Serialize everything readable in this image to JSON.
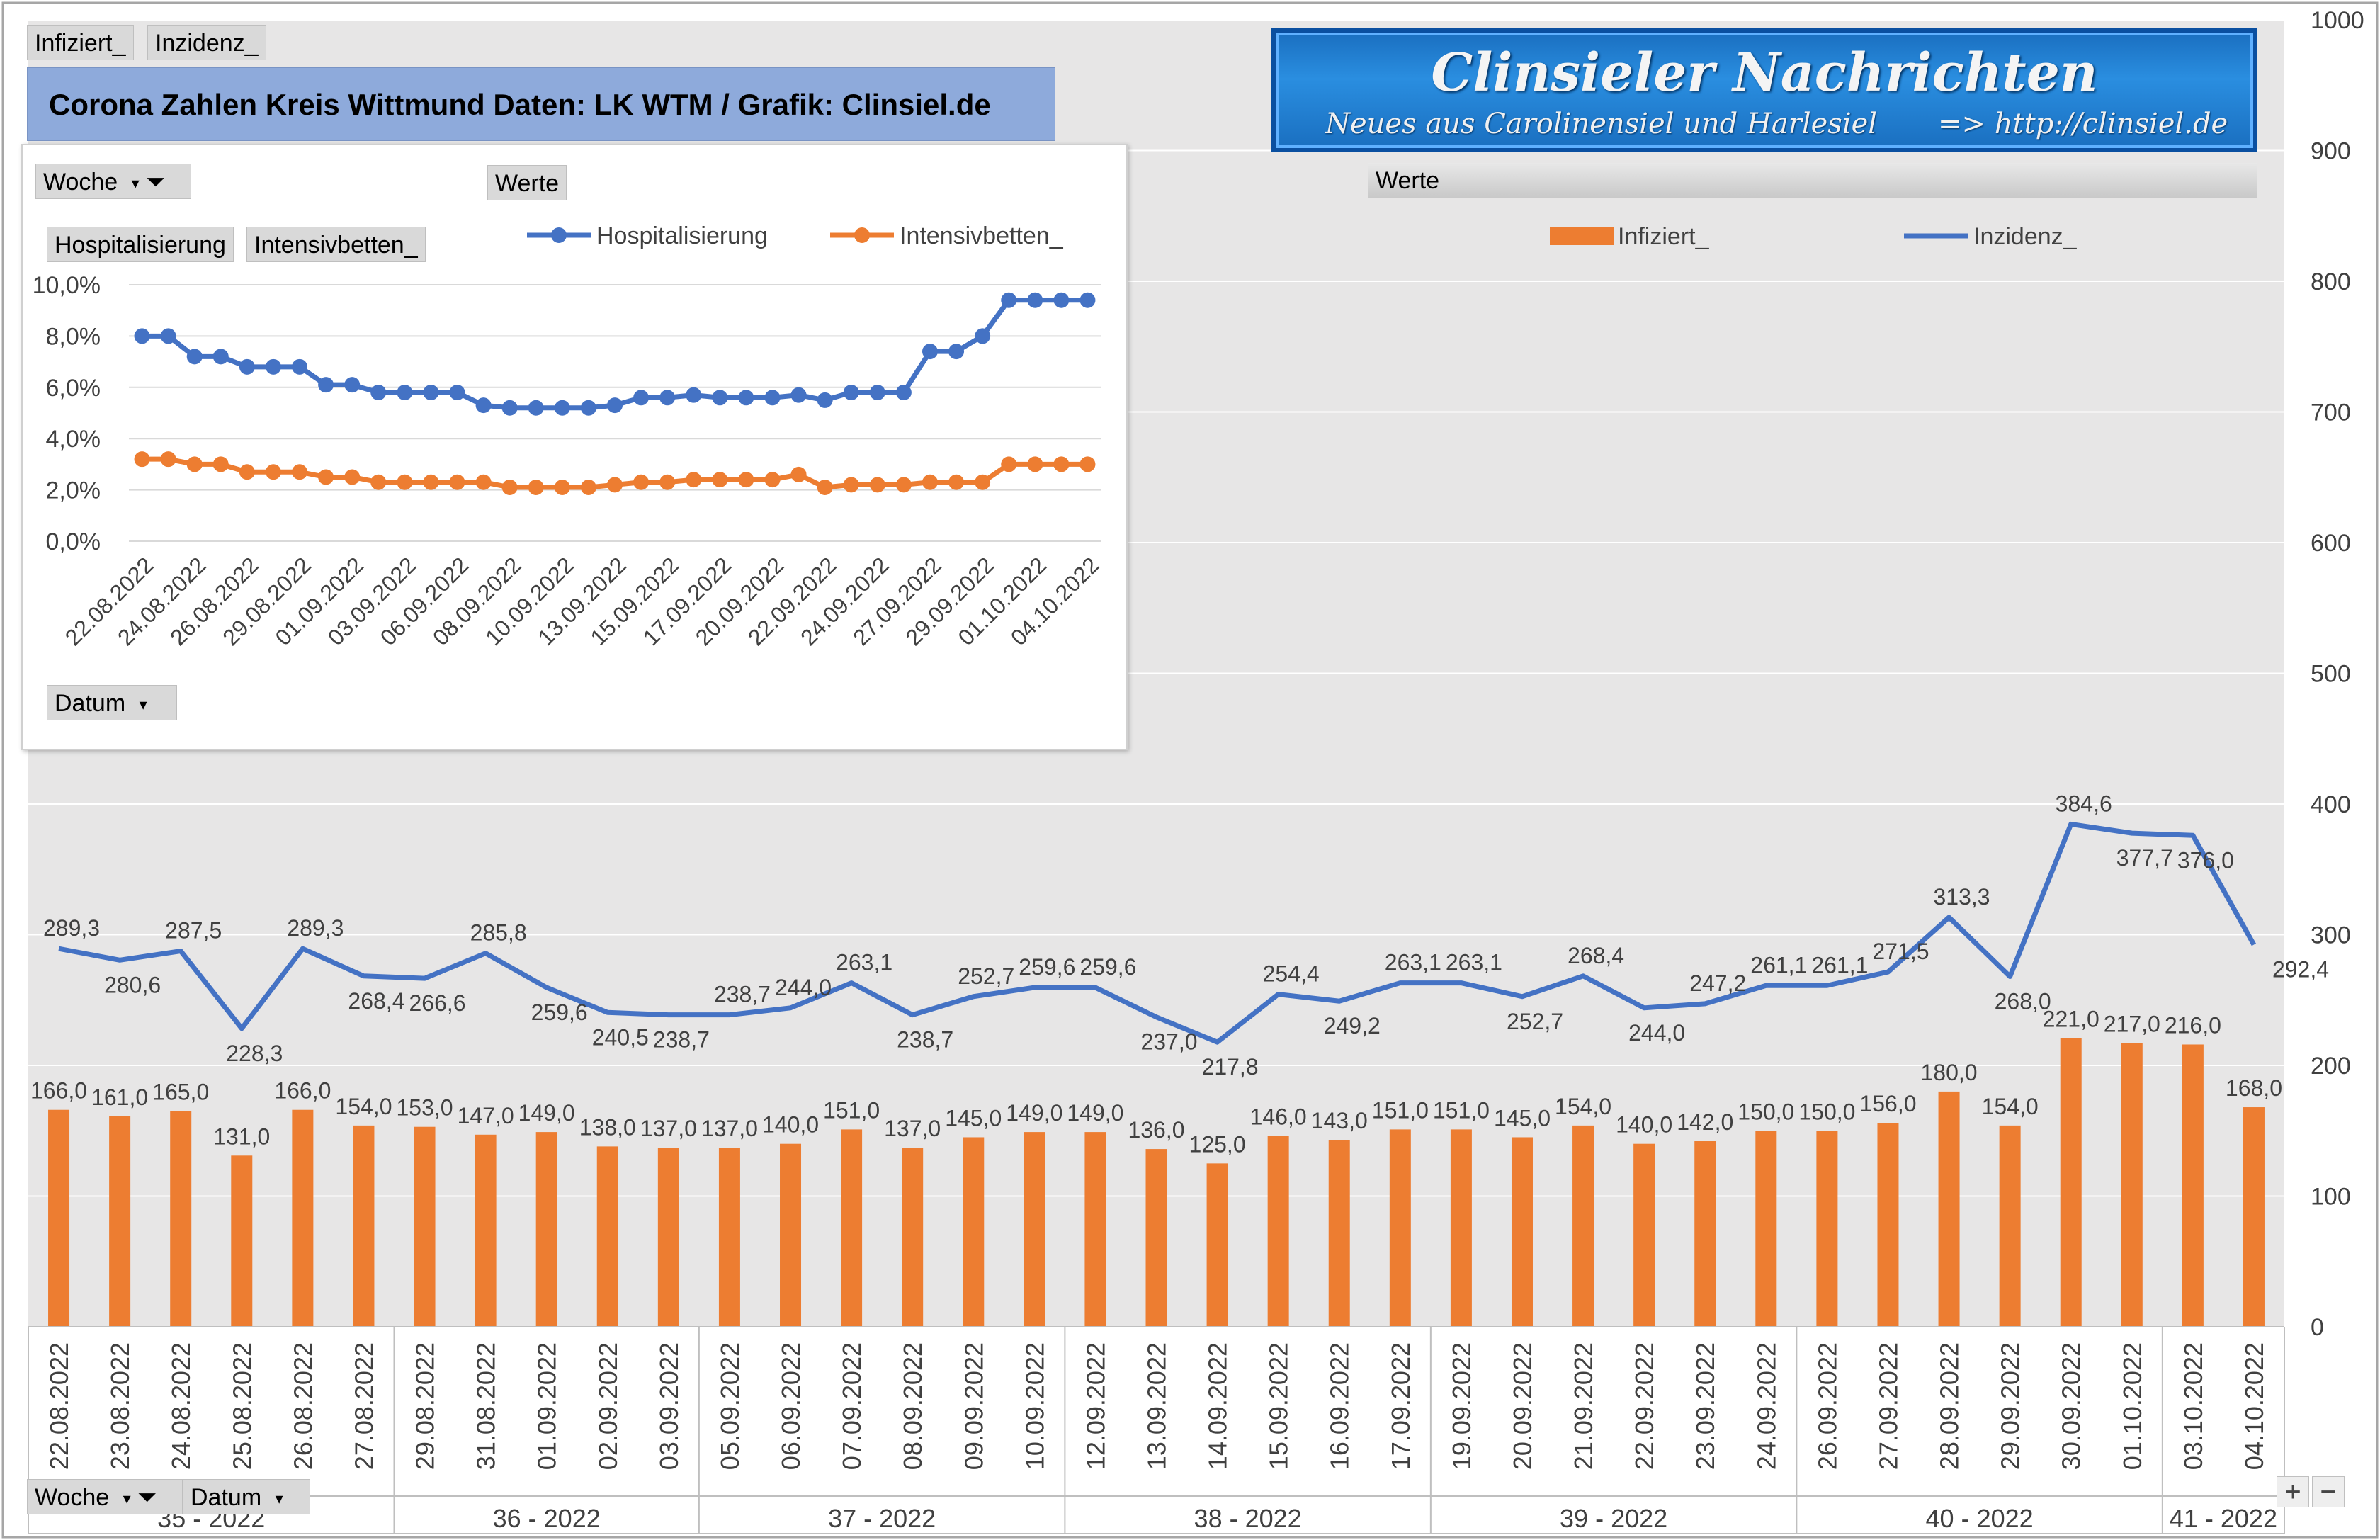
{
  "header": {
    "top_buttons": [
      "Infiziert_",
      "Inzidenz_"
    ],
    "title": "Corona Zahlen Kreis Wittmund  Daten: LK WTM / Grafik: Clinsiel.de"
  },
  "logo": {
    "title": "Clinsieler Nachrichten",
    "subtitle": "Neues aus Carolinensiel und Harlesiel",
    "url": "=> http://clinsiel.de"
  },
  "inset": {
    "filter_week": "Woche",
    "values_label": "Werte",
    "field_hosp": "Hospitalisierung",
    "field_icu": "Intensivbetten_",
    "date_field": "Datum"
  },
  "main": {
    "values_label": "Werte",
    "bottom_week": "Woche",
    "bottom_date": "Datum",
    "plus": "+",
    "minus": "−"
  },
  "colors": {
    "blue": "#4472c4",
    "orange": "#ed7d31",
    "grid": "#ffffff",
    "plot_bg": "#e7e6e6"
  },
  "chart_data": [
    {
      "type": "bar",
      "legend_position": "top",
      "categories": [
        "22.08.2022",
        "23.08.2022",
        "24.08.2022",
        "25.08.2022",
        "26.08.2022",
        "27.08.2022",
        "29.08.2022",
        "31.08.2022",
        "01.09.2022",
        "02.09.2022",
        "03.09.2022",
        "05.09.2022",
        "06.09.2022",
        "07.09.2022",
        "08.09.2022",
        "09.09.2022",
        "10.09.2022",
        "12.09.2022",
        "13.09.2022",
        "14.09.2022",
        "15.09.2022",
        "16.09.2022",
        "17.09.2022",
        "19.09.2022",
        "20.09.2022",
        "21.09.2022",
        "22.09.2022",
        "23.09.2022",
        "24.09.2022",
        "26.09.2022",
        "27.09.2022",
        "28.09.2022",
        "29.09.2022",
        "30.09.2022",
        "01.10.2022",
        "03.10.2022",
        "04.10.2022"
      ],
      "groups": [
        {
          "label": "35 - 2022",
          "count": 6
        },
        {
          "label": "36 - 2022",
          "count": 5
        },
        {
          "label": "37 - 2022",
          "count": 6
        },
        {
          "label": "38 - 2022",
          "count": 6
        },
        {
          "label": "39 - 2022",
          "count": 6
        },
        {
          "label": "40 - 2022",
          "count": 6
        },
        {
          "label": "41 - 2022",
          "count": 2
        }
      ],
      "series": [
        {
          "name": "Infiziert_",
          "kind": "bar",
          "color": "#ed7d31",
          "values": [
            166,
            161,
            165,
            131,
            166,
            154,
            153,
            147,
            149,
            138,
            137,
            137,
            140,
            151,
            137,
            145,
            149,
            149,
            136,
            125,
            146,
            143,
            151,
            151,
            145,
            154,
            140,
            142,
            150,
            150,
            156,
            180,
            154,
            221,
            217,
            216,
            168
          ],
          "labels": [
            "166,0",
            "161,0",
            "165,0",
            "131,0",
            "166,0",
            "154,0",
            "153,0",
            "147,0",
            "149,0",
            "138,0",
            "137,0",
            "137,0",
            "140,0",
            "151,0",
            "137,0",
            "145,0",
            "149,0",
            "149,0",
            "136,0",
            "125,0",
            "146,0",
            "143,0",
            "151,0",
            "151,0",
            "145,0",
            "154,0",
            "140,0",
            "142,0",
            "150,0",
            "150,0",
            "156,0",
            "180,0",
            "154,0",
            "221,0",
            "217,0",
            "216,0",
            "168,0"
          ]
        },
        {
          "name": "Inzidenz_",
          "kind": "line",
          "color": "#4472c4",
          "values": [
            289.3,
            280.6,
            287.5,
            228.3,
            289.3,
            268.4,
            266.6,
            285.8,
            259.6,
            240.5,
            238.7,
            238.7,
            244.0,
            263.1,
            238.7,
            252.7,
            259.6,
            259.6,
            237.0,
            217.8,
            254.4,
            249.2,
            263.1,
            263.1,
            252.7,
            268.4,
            244.0,
            247.2,
            261.1,
            261.1,
            271.5,
            313.3,
            268.0,
            384.6,
            377.7,
            376.0,
            292.4
          ],
          "labels": [
            "289,3",
            "280,6",
            "287,5",
            "228,3",
            "289,3",
            "268,4",
            "266,6",
            "285,8",
            "259,6",
            "240,5",
            "238,7",
            "238,7",
            "244,0",
            "263,1",
            "238,7",
            "252,7",
            "259,6",
            "259,6",
            "237,0",
            "217,8",
            "254,4",
            "249,2",
            "263,1",
            "263,1",
            "252,7",
            "268,4",
            "244,0",
            "247,2",
            "261,1",
            "261,1",
            "271,5",
            "313,3",
            "268,0",
            "384,6",
            "377,7",
            "376,0",
            "292,4"
          ]
        }
      ],
      "ylim": [
        0,
        1000
      ],
      "yticks": [
        "0",
        "100",
        "200",
        "300",
        "400",
        "500",
        "600",
        "700",
        "800",
        "900",
        "1000"
      ],
      "grid": true
    },
    {
      "type": "line",
      "legend_position": "top",
      "categories": [
        "22.08.2022",
        "23.08.2022",
        "24.08.2022",
        "25.08.2022",
        "26.08.2022",
        "27.08.2022",
        "29.08.2022",
        "31.08.2022",
        "01.09.2022",
        "02.09.2022",
        "03.09.2022",
        "05.09.2022",
        "06.09.2022",
        "07.09.2022",
        "08.09.2022",
        "09.09.2022",
        "10.09.2022",
        "12.09.2022",
        "13.09.2022",
        "14.09.2022",
        "15.09.2022",
        "16.09.2022",
        "17.09.2022",
        "19.09.2022",
        "20.09.2022",
        "21.09.2022",
        "22.09.2022",
        "23.09.2022",
        "24.09.2022",
        "26.09.2022",
        "27.09.2022",
        "28.09.2022",
        "29.09.2022",
        "30.09.2022",
        "01.10.2022",
        "03.10.2022",
        "04.10.2022"
      ],
      "tick_labels": [
        "22.08.2022",
        "24.08.2022",
        "26.08.2022",
        "29.08.2022",
        "01.09.2022",
        "03.09.2022",
        "06.09.2022",
        "08.09.2022",
        "10.09.2022",
        "13.09.2022",
        "15.09.2022",
        "17.09.2022",
        "20.09.2022",
        "22.09.2022",
        "24.09.2022",
        "27.09.2022",
        "29.09.2022",
        "01.10.2022",
        "04.10.2022"
      ],
      "series": [
        {
          "name": "Hospitalisierung",
          "color": "#4472c4",
          "values": [
            8.0,
            8.0,
            7.2,
            7.2,
            6.8,
            6.8,
            6.8,
            6.1,
            6.1,
            5.8,
            5.8,
            5.8,
            5.8,
            5.3,
            5.2,
            5.2,
            5.2,
            5.2,
            5.3,
            5.6,
            5.6,
            5.7,
            5.6,
            5.6,
            5.6,
            5.7,
            5.5,
            5.8,
            5.8,
            5.8,
            7.4,
            7.4,
            8.0,
            9.4,
            9.4,
            9.4,
            9.4
          ]
        },
        {
          "name": "Intensivbetten_",
          "color": "#ed7d31",
          "values": [
            3.2,
            3.2,
            3.0,
            3.0,
            2.7,
            2.7,
            2.7,
            2.5,
            2.5,
            2.3,
            2.3,
            2.3,
            2.3,
            2.3,
            2.1,
            2.1,
            2.1,
            2.1,
            2.2,
            2.3,
            2.3,
            2.4,
            2.4,
            2.4,
            2.4,
            2.6,
            2.1,
            2.2,
            2.2,
            2.2,
            2.3,
            2.3,
            2.3,
            3.0,
            3.0,
            3.0,
            3.0
          ]
        }
      ],
      "ylim": [
        0,
        10
      ],
      "yticks": [
        "0,0%",
        "2,0%",
        "4,0%",
        "6,0%",
        "8,0%",
        "10,0%"
      ],
      "grid": true
    }
  ]
}
